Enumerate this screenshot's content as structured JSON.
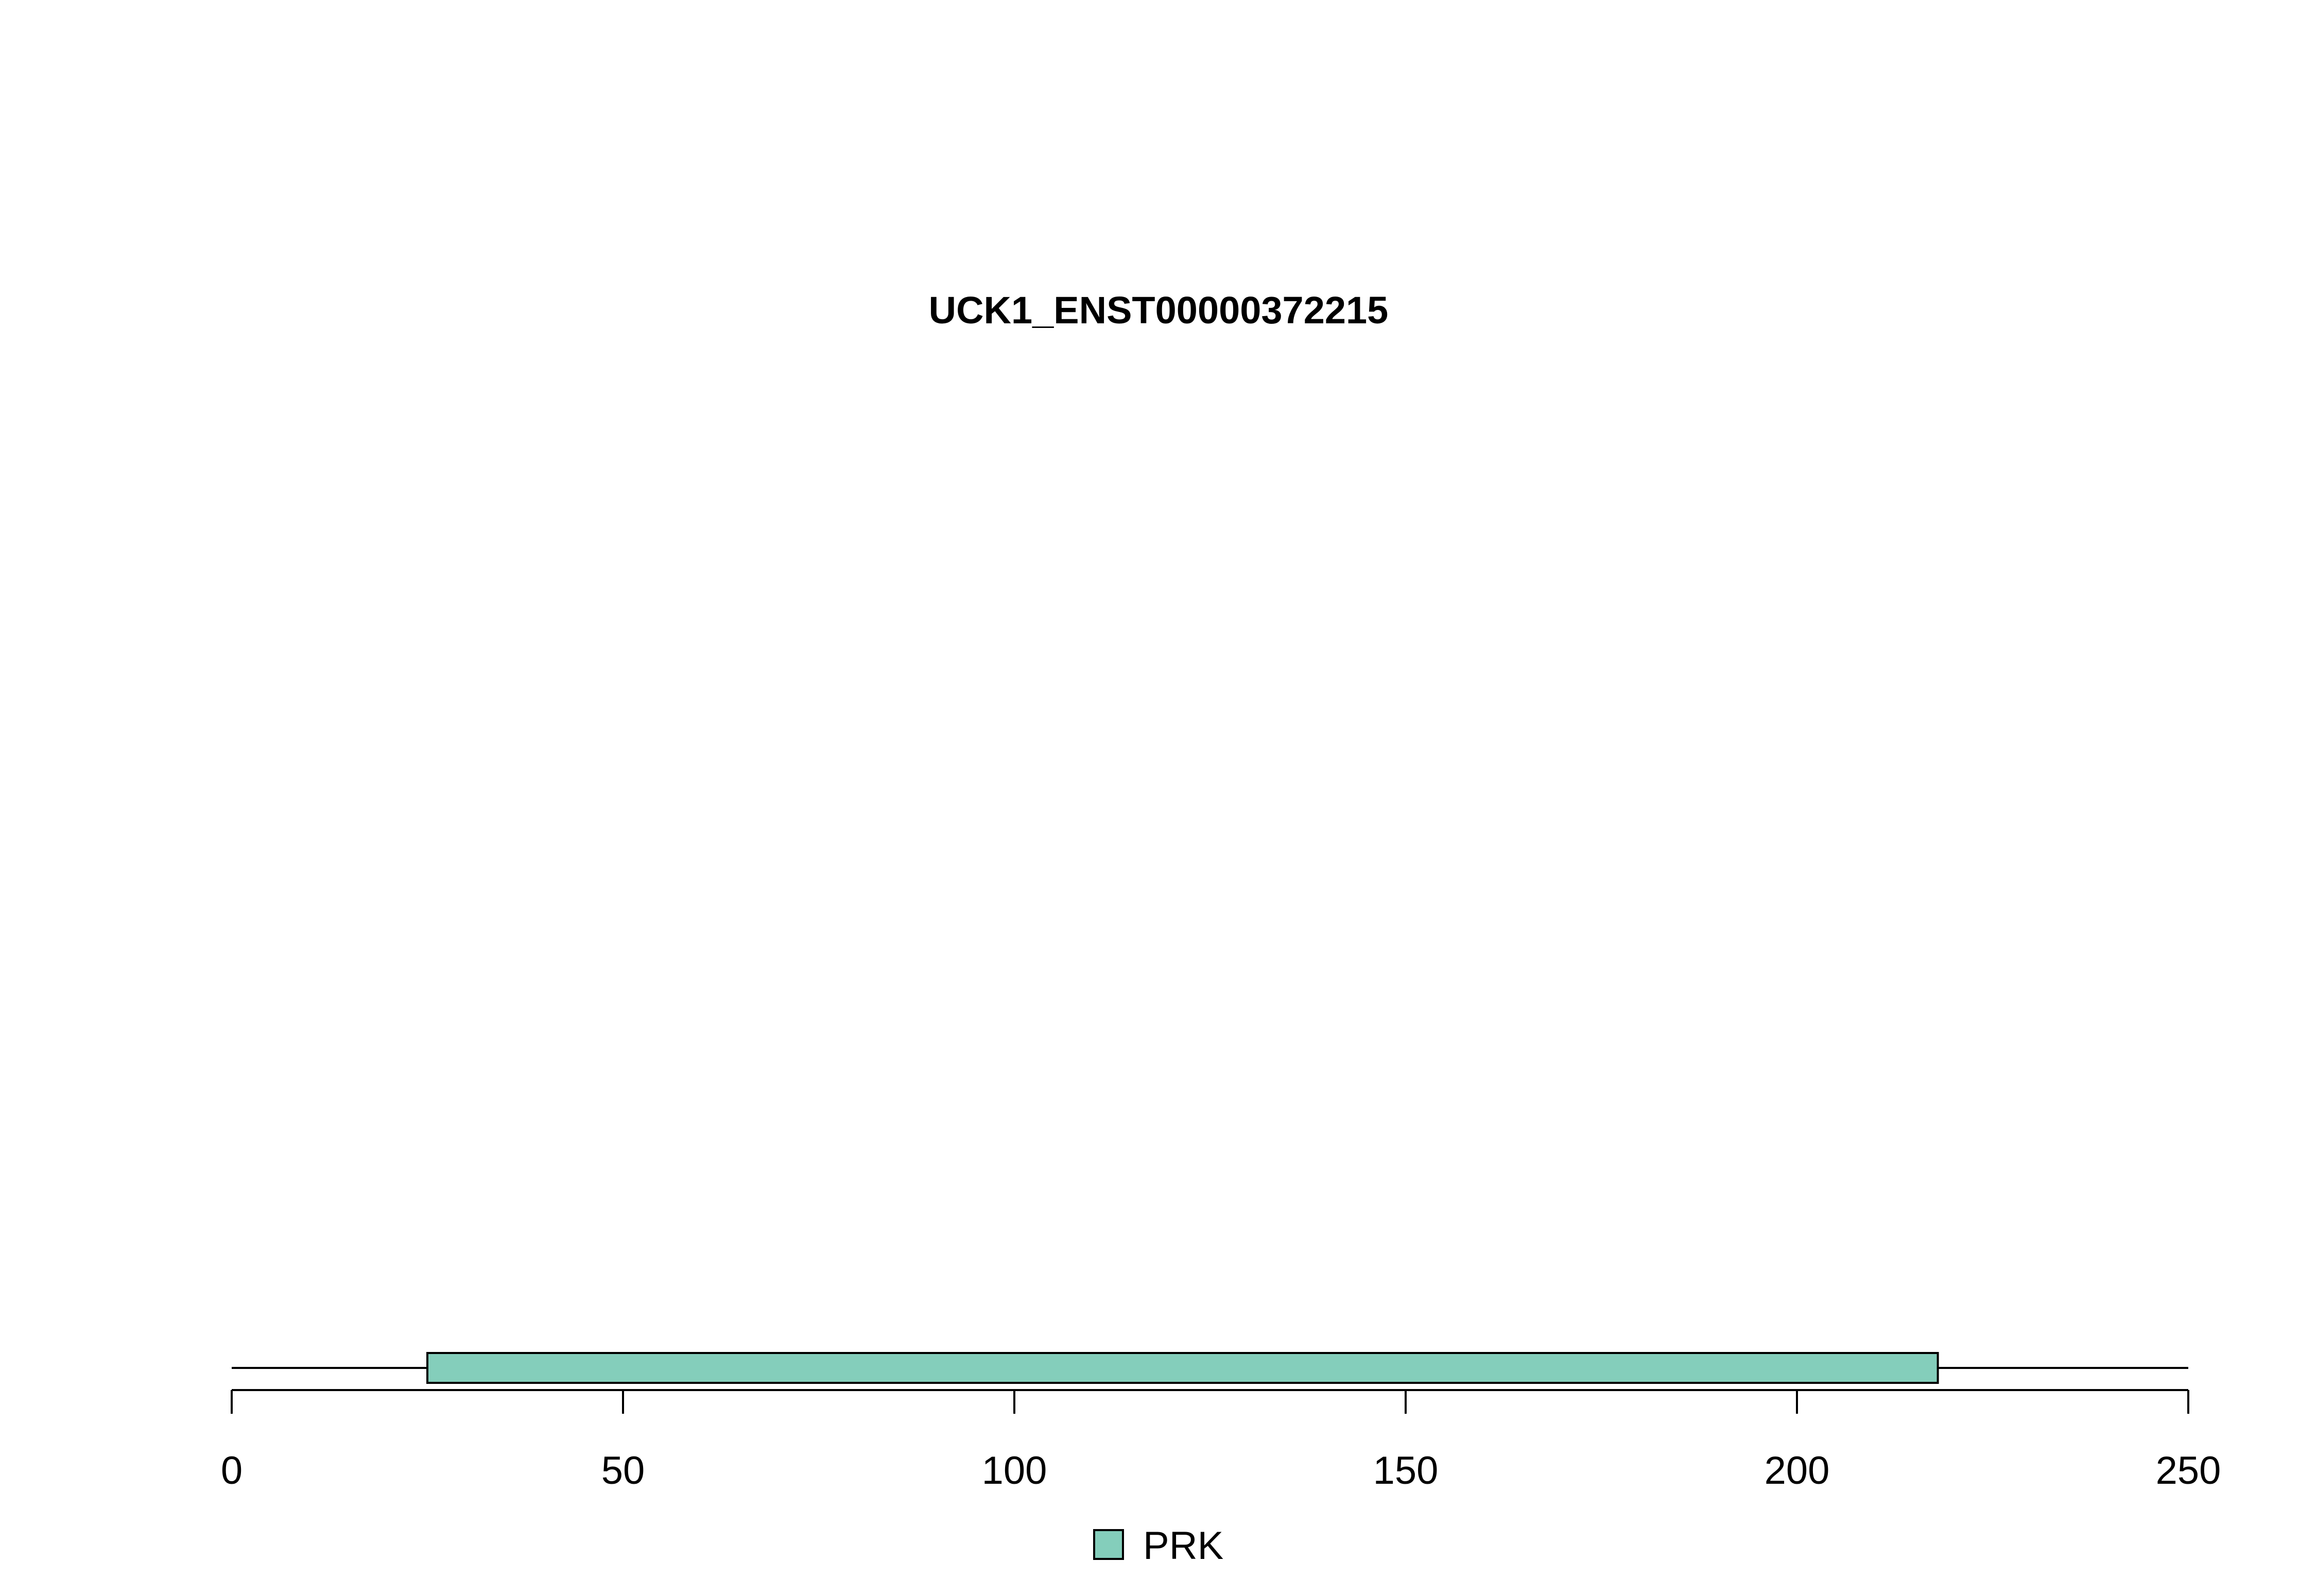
{
  "chart_data": {
    "type": "bar",
    "title": "UCK1_ENST00000372215",
    "xlabel": "",
    "ylabel": "",
    "xlim": [
      0,
      250
    ],
    "x_ticks": [
      0,
      50,
      100,
      150,
      200,
      250
    ],
    "x_tick_labels": [
      "0",
      "50",
      "100",
      "150",
      "200",
      "250"
    ],
    "protein_length": 250,
    "domains": [
      {
        "name": "PRK",
        "start": 25,
        "end": 218,
        "color": "#84CEBB"
      }
    ],
    "legend": {
      "placement": "bottom-center",
      "entries": [
        {
          "label": "PRK",
          "color": "#84CEBB"
        }
      ]
    },
    "grid": false
  }
}
